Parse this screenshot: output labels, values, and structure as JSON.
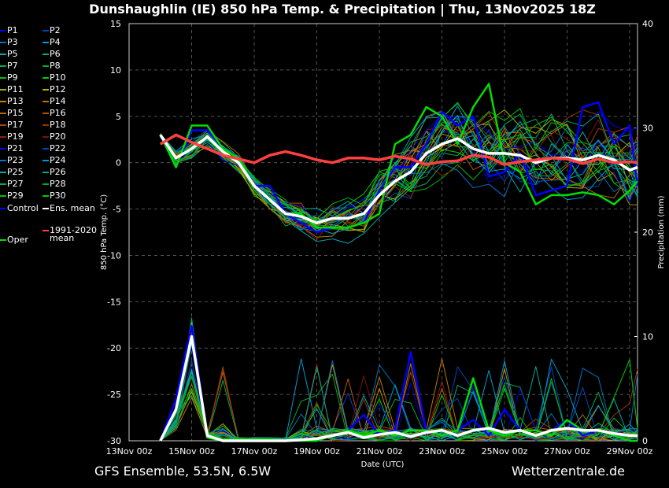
{
  "title": "Dunshaughlin  (IE)  850 hPa Temp. & Precipitation | Thu, 13Nov2025 18Z",
  "footer": {
    "left": "GFS Ensemble, 53.5N, 6.5W",
    "right": "Wetterzentrale.de"
  },
  "legend": {
    "members": [
      "P1",
      "P2",
      "P3",
      "P4",
      "P5",
      "P6",
      "P7",
      "P8",
      "P9",
      "P10",
      "P11",
      "P12",
      "P13",
      "P14",
      "P15",
      "P16",
      "P17",
      "P18",
      "P19",
      "P20",
      "P21",
      "P22",
      "P23",
      "P24",
      "P25",
      "P26",
      "P27",
      "P28",
      "P29",
      "P30"
    ],
    "control": "Control",
    "ens_mean": "Ens. mean",
    "climate": "1991-2020",
    "climate2": "mean",
    "oper": "Oper"
  },
  "chart_data": {
    "type": "line",
    "title": "Dunshaughlin  (IE)  850 hPa Temp. & Precipitation | Thu, 13Nov2025 18Z",
    "xlabel": "Date (UTC)",
    "ylabel": "850 hPa Temp. (°C)",
    "y2label": "Precipitation (mm)",
    "xlim_hours": [
      0,
      390
    ],
    "ylim": [
      -30,
      15
    ],
    "y2lim": [
      0,
      40
    ],
    "xticks": [
      "13Nov 00z",
      "15Nov 00z",
      "17Nov 00z",
      "19Nov 00z",
      "21Nov 00z",
      "23Nov 00z",
      "25Nov 00z",
      "27Nov 00z",
      "29Nov 00z"
    ],
    "yticks": [
      -30,
      -25,
      -20,
      -15,
      -10,
      -5,
      0,
      5,
      10,
      15
    ],
    "y2ticks": [
      0,
      10,
      20,
      30,
      40
    ],
    "grid": true,
    "x_hours": [
      24,
      36,
      48,
      60,
      72,
      84,
      96,
      108,
      120,
      132,
      144,
      156,
      168,
      180,
      192,
      204,
      216,
      228,
      240,
      252,
      264,
      276,
      288,
      300,
      312,
      324,
      336,
      348,
      360,
      372,
      384,
      390
    ],
    "series": [
      {
        "name": "Ens. mean",
        "color": "#ffffff",
        "values": [
          3,
          0.5,
          1.5,
          2.8,
          1.2,
          0,
          -2.5,
          -4,
          -5.5,
          -5.8,
          -6.5,
          -6,
          -6,
          -5.5,
          -3.5,
          -2,
          -1,
          1,
          2,
          2.6,
          1.5,
          1,
          1,
          0.8,
          0,
          0.5,
          0.5,
          0.3,
          0.8,
          0.3,
          -0.8,
          -0.5
        ]
      },
      {
        "name": "1991-2020 mean",
        "color": "#ff4040",
        "values": [
          2,
          3,
          2.2,
          1.5,
          0.8,
          0.4,
          0,
          0.8,
          1.2,
          0.8,
          0.3,
          0,
          0.5,
          0.5,
          0.3,
          0.7,
          0.4,
          -0.2,
          0.1,
          0.2,
          0.8,
          0.6,
          -0.2,
          0.1,
          0.3,
          0.5,
          0.4,
          -0.1,
          0.4,
          0,
          0.1,
          0
        ]
      },
      {
        "name": "Control",
        "color": "#0000ff",
        "values": [
          3,
          -0.5,
          3.5,
          3.5,
          1.5,
          0.5,
          -2.5,
          -2.5,
          -5.5,
          -6.5,
          -7.5,
          -7,
          -7,
          -6.5,
          -3,
          -0.5,
          -0.5,
          2,
          5.5,
          4,
          5,
          -1.5,
          -1,
          1,
          -3.5,
          -3,
          -2.5,
          6,
          6.5,
          2,
          4,
          -2.5
        ]
      },
      {
        "name": "Oper",
        "color": "#00dd00",
        "values": [
          3,
          -0.5,
          4,
          4,
          1.5,
          0.5,
          -2.5,
          -4,
          -5.5,
          -5.5,
          -7,
          -7,
          -7,
          -6.5,
          -5.5,
          2,
          3,
          6,
          5,
          2,
          6,
          8.5,
          0,
          -1,
          -4.5,
          -3.5,
          -3.5,
          -3.2,
          -3.5,
          -4.5,
          -3,
          -2
        ]
      }
    ],
    "precip_series": [
      {
        "name": "Ens. mean",
        "color": "#ffffff",
        "values": [
          0,
          3,
          10,
          0.5,
          0,
          0,
          0,
          0,
          0,
          0.1,
          0.2,
          0.5,
          0.8,
          0.3,
          0.6,
          0.8,
          0.4,
          0.8,
          1,
          0.5,
          1,
          1.2,
          0.8,
          1,
          0.5,
          1,
          1.2,
          1,
          1,
          0.7,
          0.5,
          0.5
        ]
      },
      {
        "name": "Control",
        "color": "#0000ff",
        "values": [
          0,
          4,
          11,
          0.5,
          0,
          0,
          0,
          0,
          0,
          0,
          0,
          0.5,
          1,
          2.5,
          0.5,
          1,
          8.5,
          1,
          0.5,
          1,
          2,
          0.5,
          3,
          1,
          0.5,
          1,
          2,
          0.5,
          1,
          0.5,
          0,
          0
        ]
      },
      {
        "name": "Oper",
        "color": "#00dd00",
        "values": [
          0,
          3,
          10,
          0.3,
          0,
          0,
          0,
          0,
          0,
          0,
          0,
          0.5,
          1,
          0.5,
          1,
          0.5,
          1,
          1,
          0.5,
          1,
          6,
          1,
          0.5,
          1,
          1,
          0.5,
          2,
          1,
          1,
          0.5,
          0,
          0
        ]
      }
    ],
    "member_spread": [
      0.3,
      1.2,
      1,
      1,
      1,
      1,
      1.2,
      1.5,
      1.5,
      1.8,
      2,
      2,
      2,
      2.2,
      3,
      3.5,
      4,
      4,
      4,
      4,
      4,
      4.5,
      4.5,
      4.5,
      4.5,
      4.5,
      4.5,
      4.5,
      4.5,
      4.5,
      4.5,
      4.5
    ],
    "member_colors": [
      "#0000dd",
      "#0044bb",
      "#0070c0",
      "#0099cc",
      "#00aaaa",
      "#00aa88",
      "#00aa55",
      "#00aa33",
      "#00bb00",
      "#00cc00",
      "#aaaa00",
      "#bbaa00",
      "#bb8800",
      "#bb7700",
      "#bb6600",
      "#bb5500",
      "#aa4400",
      "#993300",
      "#882200",
      "#771111",
      "#0000dd",
      "#0044bb",
      "#0070c0",
      "#0099cc",
      "#00aaaa",
      "#00aa88",
      "#00aa55",
      "#00aa33",
      "#00bb00",
      "#00cc00"
    ]
  }
}
